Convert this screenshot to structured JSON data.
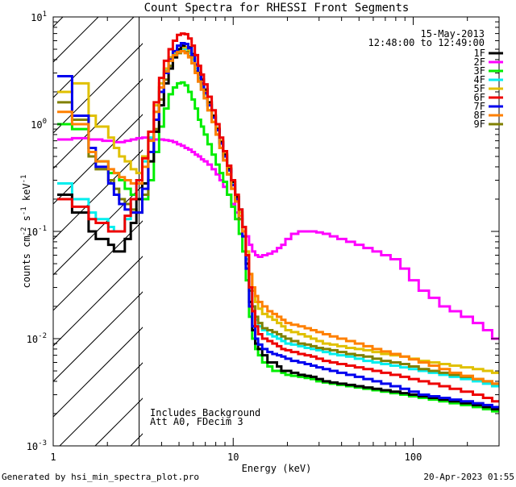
{
  "chart_data": {
    "type": "line",
    "title": "Count Spectra for RHESSI Front Segments",
    "xlabel": "Energy (keV)",
    "ylabel": {
      "base": "counts cm",
      "exp1": "-2",
      "mid": " s",
      "exp2": "-1",
      "end": " keV",
      "exp3": "-1"
    },
    "xscale": "log",
    "yscale": "log",
    "xlim": [
      1.0,
      300.0
    ],
    "ylim": [
      0.001,
      10.0
    ],
    "x_ticks": [
      {
        "value": 1,
        "label": "1"
      },
      {
        "value": 10,
        "label": "10"
      },
      {
        "value": 100,
        "label": "100"
      }
    ],
    "y_ticks": [
      {
        "value": 0.001,
        "base": "10",
        "exp": "-3"
      },
      {
        "value": 0.01,
        "base": "10",
        "exp": "-2"
      },
      {
        "value": 0.1,
        "base": "10",
        "exp": "-1"
      },
      {
        "value": 1,
        "base": "10",
        "exp": "0"
      },
      {
        "value": 10,
        "base": "10",
        "exp": "1"
      }
    ],
    "hatched_region": {
      "x_from": 1.0,
      "x_to": 3.0
    },
    "header_lines": [
      "15-May-2013",
      "12:48:00 to 12:49:00"
    ],
    "annotations": [
      "Includes Background",
      "Att A0, FDecim 3"
    ],
    "footer_left": "Generated by hsi_min_spectra_plot.pro",
    "footer_right": "20-Apr-2023 01:55",
    "x": [
      1.1,
      1.2,
      1.35,
      1.5,
      1.65,
      1.8,
      1.95,
      2.1,
      2.25,
      2.4,
      2.6,
      2.8,
      3.0,
      3.25,
      3.5,
      3.75,
      4.0,
      4.25,
      4.5,
      4.75,
      5.0,
      5.25,
      5.5,
      5.75,
      6.0,
      6.25,
      6.5,
      6.75,
      7.0,
      7.4,
      7.8,
      8.2,
      8.6,
      9.0,
      9.5,
      10.0,
      10.5,
      11.0,
      11.5,
      12.0,
      12.5,
      13.0,
      13.5,
      14.0,
      15.0,
      16.0,
      17.0,
      18.0,
      19.0,
      20.0,
      22.0,
      24.0,
      26.0,
      28.0,
      30.0,
      33.0,
      36.0,
      40.0,
      45.0,
      50.0,
      56.0,
      63.0,
      70.0,
      80.0,
      90.0,
      100.0,
      115.0,
      130.0,
      150.0,
      170.0,
      200.0,
      230.0,
      260.0,
      290.0
    ],
    "series": [
      {
        "name": "1F",
        "color": "#000000",
        "values": [
          0.22,
          0.22,
          0.15,
          0.15,
          0.1,
          0.085,
          0.085,
          0.075,
          0.065,
          0.065,
          0.085,
          0.12,
          0.2,
          0.28,
          0.45,
          0.85,
          1.5,
          2.4,
          3.3,
          4.2,
          5.0,
          5.4,
          5.6,
          5.2,
          4.5,
          3.6,
          3.0,
          2.6,
          2.1,
          1.6,
          1.2,
          0.9,
          0.68,
          0.52,
          0.38,
          0.29,
          0.21,
          0.16,
          0.1,
          0.05,
          0.022,
          0.012,
          0.009,
          0.008,
          0.007,
          0.006,
          0.006,
          0.0055,
          0.005,
          0.005,
          0.0048,
          0.0046,
          0.0045,
          0.0044,
          0.0042,
          0.004,
          0.0039,
          0.0038,
          0.0037,
          0.0036,
          0.0035,
          0.0034,
          0.0033,
          0.0032,
          0.0031,
          0.003,
          0.0029,
          0.0028,
          0.0027,
          0.0026,
          0.0025,
          0.0024,
          0.0023,
          0.0022
        ]
      },
      {
        "name": "2F",
        "color": "#ff00ff",
        "values": [
          0.72,
          0.72,
          0.74,
          0.74,
          0.72,
          0.72,
          0.7,
          0.7,
          0.68,
          0.68,
          0.7,
          0.72,
          0.74,
          0.75,
          0.73,
          0.72,
          0.72,
          0.71,
          0.7,
          0.68,
          0.65,
          0.63,
          0.6,
          0.58,
          0.55,
          0.52,
          0.5,
          0.47,
          0.45,
          0.42,
          0.38,
          0.34,
          0.3,
          0.26,
          0.22,
          0.18,
          0.15,
          0.13,
          0.11,
          0.09,
          0.075,
          0.065,
          0.06,
          0.058,
          0.06,
          0.062,
          0.065,
          0.07,
          0.075,
          0.085,
          0.095,
          0.1,
          0.1,
          0.1,
          0.098,
          0.095,
          0.09,
          0.085,
          0.08,
          0.075,
          0.07,
          0.065,
          0.06,
          0.055,
          0.045,
          0.035,
          0.028,
          0.024,
          0.02,
          0.018,
          0.016,
          0.014,
          0.012,
          0.01
        ]
      },
      {
        "name": "3F",
        "color": "#00ee00",
        "values": [
          1.0,
          1.0,
          0.9,
          0.9,
          0.55,
          0.45,
          0.45,
          0.35,
          0.35,
          0.3,
          0.25,
          0.22,
          0.2,
          0.2,
          0.3,
          0.55,
          0.95,
          1.4,
          1.9,
          2.2,
          2.4,
          2.45,
          2.3,
          2.0,
          1.7,
          1.4,
          1.1,
          0.95,
          0.8,
          0.65,
          0.52,
          0.42,
          0.35,
          0.29,
          0.22,
          0.17,
          0.13,
          0.095,
          0.065,
          0.035,
          0.016,
          0.01,
          0.008,
          0.007,
          0.006,
          0.0055,
          0.005,
          0.005,
          0.0048,
          0.0046,
          0.0045,
          0.0044,
          0.0043,
          0.0042,
          0.004,
          0.0039,
          0.0038,
          0.0037,
          0.0036,
          0.0035,
          0.0034,
          0.0033,
          0.0032,
          0.0031,
          0.003,
          0.0029,
          0.0028,
          0.0027,
          0.0026,
          0.0025,
          0.0024,
          0.0023,
          0.0022,
          0.0021
        ]
      },
      {
        "name": "4F",
        "color": "#00eeee",
        "values": [
          0.28,
          0.28,
          0.2,
          0.2,
          0.15,
          0.13,
          0.13,
          0.11,
          0.1,
          0.1,
          0.13,
          0.2,
          0.3,
          0.45,
          0.75,
          1.3,
          2.2,
          3.2,
          4.1,
          4.6,
          4.9,
          5.1,
          5.0,
          4.6,
          4.0,
          3.3,
          2.7,
          2.3,
          1.9,
          1.5,
          1.15,
          0.88,
          0.66,
          0.51,
          0.38,
          0.28,
          0.21,
          0.15,
          0.1,
          0.055,
          0.03,
          0.02,
          0.015,
          0.013,
          0.012,
          0.011,
          0.0105,
          0.01,
          0.0095,
          0.009,
          0.0088,
          0.0085,
          0.0082,
          0.008,
          0.0078,
          0.0075,
          0.0072,
          0.007,
          0.0068,
          0.0065,
          0.0062,
          0.006,
          0.0058,
          0.0056,
          0.0054,
          0.0052,
          0.005,
          0.0048,
          0.0046,
          0.0044,
          0.0042,
          0.004,
          0.0038,
          0.0036
        ]
      },
      {
        "name": "5F",
        "color": "#e0c000",
        "values": [
          2.0,
          2.0,
          2.4,
          2.4,
          1.2,
          0.95,
          0.95,
          0.75,
          0.6,
          0.5,
          0.45,
          0.38,
          0.35,
          0.5,
          0.85,
          1.5,
          2.4,
          3.3,
          4.2,
          4.7,
          5.0,
          5.2,
          5.2,
          4.8,
          4.2,
          3.5,
          2.9,
          2.4,
          2.0,
          1.55,
          1.2,
          0.92,
          0.7,
          0.53,
          0.39,
          0.29,
          0.21,
          0.15,
          0.11,
          0.065,
          0.04,
          0.028,
          0.022,
          0.019,
          0.017,
          0.016,
          0.015,
          0.014,
          0.013,
          0.012,
          0.0115,
          0.011,
          0.0105,
          0.01,
          0.0095,
          0.009,
          0.0088,
          0.0085,
          0.0082,
          0.008,
          0.0078,
          0.0075,
          0.0072,
          0.007,
          0.0068,
          0.0065,
          0.0062,
          0.006,
          0.0058,
          0.0056,
          0.0054,
          0.0052,
          0.005,
          0.0048
        ]
      },
      {
        "name": "6F",
        "color": "#ee0000",
        "values": [
          0.2,
          0.2,
          0.17,
          0.17,
          0.13,
          0.12,
          0.12,
          0.1,
          0.1,
          0.1,
          0.14,
          0.2,
          0.3,
          0.48,
          0.85,
          1.6,
          2.7,
          3.9,
          5.0,
          6.0,
          6.8,
          7.0,
          6.9,
          6.3,
          5.4,
          4.4,
          3.5,
          2.9,
          2.35,
          1.8,
          1.35,
          1.0,
          0.75,
          0.56,
          0.41,
          0.3,
          0.22,
          0.16,
          0.11,
          0.06,
          0.03,
          0.018,
          0.013,
          0.011,
          0.01,
          0.0095,
          0.009,
          0.0085,
          0.008,
          0.0078,
          0.0075,
          0.0072,
          0.007,
          0.0068,
          0.0065,
          0.0062,
          0.006,
          0.0058,
          0.0056,
          0.0054,
          0.0052,
          0.005,
          0.0048,
          0.0046,
          0.0044,
          0.0042,
          0.004,
          0.0038,
          0.0036,
          0.0034,
          0.0032,
          0.003,
          0.0028,
          0.0026
        ]
      },
      {
        "name": "7F",
        "color": "#0000ee",
        "values": [
          2.8,
          2.8,
          1.2,
          1.2,
          0.6,
          0.4,
          0.4,
          0.28,
          0.22,
          0.18,
          0.16,
          0.15,
          0.15,
          0.25,
          0.55,
          1.1,
          2.0,
          3.0,
          4.0,
          4.8,
          5.4,
          5.7,
          5.6,
          5.1,
          4.4,
          3.6,
          2.9,
          2.4,
          1.95,
          1.5,
          1.15,
          0.88,
          0.66,
          0.5,
          0.37,
          0.27,
          0.2,
          0.14,
          0.09,
          0.045,
          0.02,
          0.013,
          0.01,
          0.0088,
          0.008,
          0.0075,
          0.0072,
          0.007,
          0.0068,
          0.0065,
          0.0062,
          0.006,
          0.0058,
          0.0056,
          0.0054,
          0.0052,
          0.005,
          0.0048,
          0.0046,
          0.0044,
          0.0042,
          0.004,
          0.0038,
          0.0036,
          0.0034,
          0.0032,
          0.003,
          0.0029,
          0.0028,
          0.0027,
          0.0026,
          0.0025,
          0.0024,
          0.0023
        ]
      },
      {
        "name": "8F",
        "color": "#ff8000",
        "values": [
          1.3,
          1.3,
          1.0,
          1.0,
          0.55,
          0.45,
          0.45,
          0.38,
          0.35,
          0.32,
          0.3,
          0.28,
          0.28,
          0.4,
          0.7,
          1.3,
          2.2,
          3.1,
          3.9,
          4.4,
          4.7,
          4.8,
          4.6,
          4.2,
          3.7,
          3.0,
          2.5,
          2.1,
          1.75,
          1.35,
          1.05,
          0.8,
          0.6,
          0.46,
          0.34,
          0.25,
          0.19,
          0.14,
          0.1,
          0.06,
          0.04,
          0.03,
          0.025,
          0.022,
          0.02,
          0.018,
          0.017,
          0.016,
          0.015,
          0.014,
          0.0135,
          0.013,
          0.0125,
          0.012,
          0.0115,
          0.011,
          0.0105,
          0.01,
          0.0095,
          0.009,
          0.0085,
          0.008,
          0.0076,
          0.0072,
          0.0068,
          0.0064,
          0.006,
          0.0056,
          0.0052,
          0.0048,
          0.0045,
          0.0042,
          0.004,
          0.0038
        ]
      },
      {
        "name": "9F",
        "color": "#808000",
        "values": [
          1.6,
          1.6,
          1.1,
          1.1,
          0.5,
          0.38,
          0.38,
          0.3,
          0.25,
          0.2,
          0.18,
          0.16,
          0.15,
          0.22,
          0.45,
          0.9,
          1.7,
          2.6,
          3.5,
          4.2,
          4.6,
          4.8,
          4.7,
          4.3,
          3.7,
          3.1,
          2.5,
          2.1,
          1.75,
          1.35,
          1.05,
          0.8,
          0.6,
          0.46,
          0.34,
          0.25,
          0.19,
          0.13,
          0.09,
          0.05,
          0.028,
          0.02,
          0.016,
          0.014,
          0.0125,
          0.012,
          0.0115,
          0.011,
          0.0105,
          0.01,
          0.0095,
          0.009,
          0.0088,
          0.0085,
          0.0082,
          0.008,
          0.0078,
          0.0075,
          0.0072,
          0.007,
          0.0068,
          0.0065,
          0.0062,
          0.006,
          0.0058,
          0.0055,
          0.0052,
          0.005,
          0.0048,
          0.0046,
          0.0044,
          0.0042,
          0.004,
          0.0038
        ]
      }
    ]
  }
}
